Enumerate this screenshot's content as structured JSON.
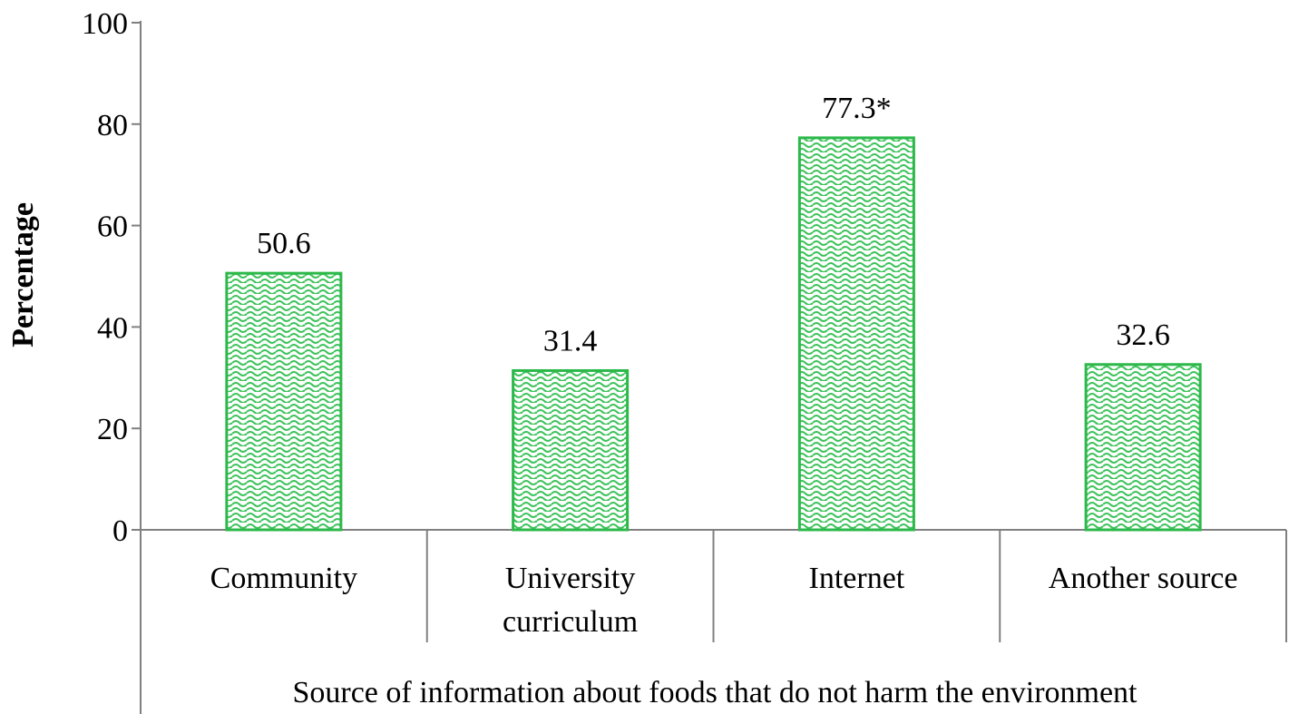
{
  "chart_data": {
    "type": "bar",
    "categories": [
      [
        "Community"
      ],
      [
        "University",
        "curriculum"
      ],
      [
        "Internet"
      ],
      [
        "Another source"
      ]
    ],
    "values": [
      50.6,
      31.4,
      77.3,
      32.6
    ],
    "data_labels": [
      "50.6",
      "31.4",
      "77.3*",
      "32.6"
    ],
    "title": "",
    "xlabel": "Source of information about foods that do not harm the environment",
    "ylabel": "Percentage",
    "ylim": [
      0,
      100
    ],
    "yticks": [
      0,
      20,
      40,
      60,
      80,
      100
    ],
    "grid": false,
    "bar_fill": "#2db84a",
    "bar_pattern_bg": "#e8f7e8",
    "axis_color": "#808080"
  }
}
